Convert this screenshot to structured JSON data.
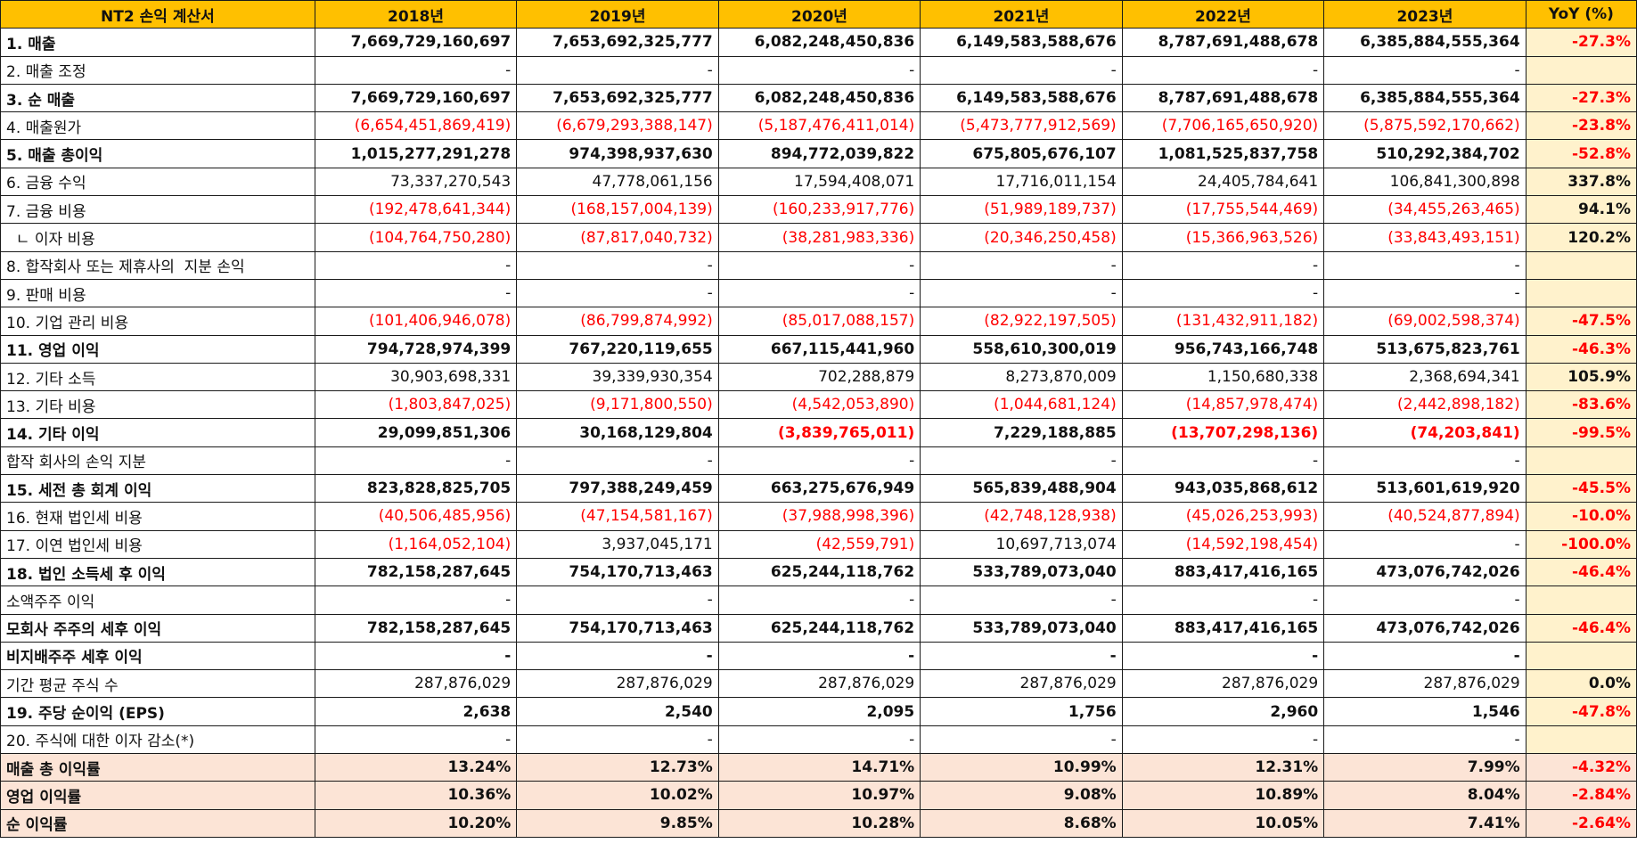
{
  "header": {
    "title": "NT2 손익 계산서",
    "years": [
      "2018년",
      "2019년",
      "2020년",
      "2021년",
      "2022년",
      "2023년"
    ],
    "yoy": "YoY (%)"
  },
  "rows": [
    {
      "label": "1. 매출",
      "bold": true,
      "values": [
        "7,669,729,160,697",
        "7,653,692,325,777",
        "6,082,248,450,836",
        "6,149,583,588,676",
        "8,787,691,488,678",
        "6,385,884,555,364"
      ],
      "yoy": "-27.3%"
    },
    {
      "label": "2. 매출 조정",
      "bold": false,
      "values": [
        "-",
        "-",
        "-",
        "-",
        "-",
        "-"
      ],
      "yoy": ""
    },
    {
      "label": "3. 순 매출",
      "bold": true,
      "values": [
        "7,669,729,160,697",
        "7,653,692,325,777",
        "6,082,248,450,836",
        "6,149,583,588,676",
        "8,787,691,488,678",
        "6,385,884,555,364"
      ],
      "yoy": "-27.3%"
    },
    {
      "label": "4. 매출원가",
      "bold": false,
      "values": [
        "(6,654,451,869,419)",
        "(6,679,293,388,147)",
        "(5,187,476,411,014)",
        "(5,473,777,912,569)",
        "(7,706,165,650,920)",
        "(5,875,592,170,662)"
      ],
      "yoy": "-23.8%"
    },
    {
      "label": "5. 매출 총이익",
      "bold": true,
      "values": [
        "1,015,277,291,278",
        "974,398,937,630",
        "894,772,039,822",
        "675,805,676,107",
        "1,081,525,837,758",
        "510,292,384,702"
      ],
      "yoy": "-52.8%"
    },
    {
      "label": "6. 금융 수익",
      "bold": false,
      "values": [
        "73,337,270,543",
        "47,778,061,156",
        "17,594,408,071",
        "17,716,011,154",
        "24,405,784,641",
        "106,841,300,898"
      ],
      "yoy": "337.8%"
    },
    {
      "label": "7. 금융 비용",
      "bold": false,
      "values": [
        "(192,478,641,344)",
        "(168,157,004,139)",
        "(160,233,917,776)",
        "(51,989,189,737)",
        "(17,755,544,469)",
        "(34,455,263,465)"
      ],
      "yoy": "94.1%"
    },
    {
      "label": "  ㄴ 이자 비용",
      "bold": false,
      "values": [
        "(104,764,750,280)",
        "(87,817,040,732)",
        "(38,281,983,336)",
        "(20,346,250,458)",
        "(15,366,963,526)",
        "(33,843,493,151)"
      ],
      "yoy": "120.2%"
    },
    {
      "label": "8. 합작회사 또는 제휴사의  지분 손익",
      "bold": false,
      "values": [
        "-",
        "-",
        "-",
        "-",
        "-",
        "-"
      ],
      "yoy": ""
    },
    {
      "label": "9. 판매 비용",
      "bold": false,
      "values": [
        "-",
        "-",
        "-",
        "-",
        "-",
        "-"
      ],
      "yoy": ""
    },
    {
      "label": "10. 기업 관리 비용",
      "bold": false,
      "values": [
        "(101,406,946,078)",
        "(86,799,874,992)",
        "(85,017,088,157)",
        "(82,922,197,505)",
        "(131,432,911,182)",
        "(69,002,598,374)"
      ],
      "yoy": "-47.5%"
    },
    {
      "label": "11. 영업 이익",
      "bold": true,
      "values": [
        "794,728,974,399",
        "767,220,119,655",
        "667,115,441,960",
        "558,610,300,019",
        "956,743,166,748",
        "513,675,823,761"
      ],
      "yoy": "-46.3%"
    },
    {
      "label": "12. 기타 소득",
      "bold": false,
      "values": [
        "30,903,698,331",
        "39,339,930,354",
        "702,288,879",
        "8,273,870,009",
        "1,150,680,338",
        "2,368,694,341"
      ],
      "yoy": "105.9%"
    },
    {
      "label": "13. 기타 비용",
      "bold": false,
      "values": [
        "(1,803,847,025)",
        "(9,171,800,550)",
        "(4,542,053,890)",
        "(1,044,681,124)",
        "(14,857,978,474)",
        "(2,442,898,182)"
      ],
      "yoy": "-83.6%"
    },
    {
      "label": "14. 기타 이익",
      "bold": true,
      "values": [
        "29,099,851,306",
        "30,168,129,804",
        "(3,839,765,011)",
        "7,229,188,885",
        "(13,707,298,136)",
        "(74,203,841)"
      ],
      "yoy": "-99.5%"
    },
    {
      "label": "합작 회사의 손익 지분",
      "bold": false,
      "values": [
        "-",
        "-",
        "-",
        "-",
        "-",
        "-"
      ],
      "yoy": ""
    },
    {
      "label": "15. 세전 총 회계 이익",
      "bold": true,
      "values": [
        "823,828,825,705",
        "797,388,249,459",
        "663,275,676,949",
        "565,839,488,904",
        "943,035,868,612",
        "513,601,619,920"
      ],
      "yoy": "-45.5%"
    },
    {
      "label": "16. 현재 법인세 비용",
      "bold": false,
      "values": [
        "(40,506,485,956)",
        "(47,154,581,167)",
        "(37,988,998,396)",
        "(42,748,128,938)",
        "(45,026,253,993)",
        "(40,524,877,894)"
      ],
      "yoy": "-10.0%"
    },
    {
      "label": "17. 이연 법인세 비용",
      "bold": false,
      "values": [
        "(1,164,052,104)",
        "3,937,045,171",
        "(42,559,791)",
        "10,697,713,074",
        "(14,592,198,454)",
        "-"
      ],
      "yoy": "-100.0%"
    },
    {
      "label": "18. 법인 소득세 후 이익",
      "bold": true,
      "values": [
        "782,158,287,645",
        "754,170,713,463",
        "625,244,118,762",
        "533,789,073,040",
        "883,417,416,165",
        "473,076,742,026"
      ],
      "yoy": "-46.4%"
    },
    {
      "label": "소액주주 이익",
      "bold": false,
      "values": [
        "-",
        "-",
        "-",
        "-",
        "-",
        "-"
      ],
      "yoy": ""
    },
    {
      "label": "모회사 주주의 세후 이익",
      "bold": true,
      "values": [
        "782,158,287,645",
        "754,170,713,463",
        "625,244,118,762",
        "533,789,073,040",
        "883,417,416,165",
        "473,076,742,026"
      ],
      "yoy": "-46.4%"
    },
    {
      "label": "비지배주주 세후 이익",
      "bold": true,
      "values": [
        "-",
        "-",
        "-",
        "-",
        "-",
        "-"
      ],
      "yoy": ""
    },
    {
      "label": "기간 평균 주식 수",
      "bold": false,
      "values": [
        "287,876,029",
        "287,876,029",
        "287,876,029",
        "287,876,029",
        "287,876,029",
        "287,876,029"
      ],
      "yoy": "0.0%"
    },
    {
      "label": "19. 주당 순이익 (EPS)",
      "bold": true,
      "values": [
        "2,638",
        "2,540",
        "2,095",
        "1,756",
        "2,960",
        "1,546"
      ],
      "yoy": "-47.8%"
    },
    {
      "label": "20. 주식에 대한 이자 감소(*)",
      "bold": false,
      "values": [
        "-",
        "-",
        "-",
        "-",
        "-",
        "-"
      ],
      "yoy": ""
    },
    {
      "label": "매출 총 이익률",
      "bold": true,
      "ratio": true,
      "values": [
        "13.24%",
        "12.73%",
        "14.71%",
        "10.99%",
        "12.31%",
        "7.99%"
      ],
      "yoy": "-4.32%"
    },
    {
      "label": "영업 이익률",
      "bold": true,
      "ratio": true,
      "values": [
        "10.36%",
        "10.02%",
        "10.97%",
        "9.08%",
        "10.89%",
        "8.04%"
      ],
      "yoy": "-2.84%"
    },
    {
      "label": "순 이익률",
      "bold": true,
      "ratio": true,
      "values": [
        "10.20%",
        "9.85%",
        "10.28%",
        "8.68%",
        "10.05%",
        "7.41%"
      ],
      "yoy": "-2.64%"
    }
  ],
  "colors": {
    "header": "#ffc000",
    "yoy_cell": "#fff2cc",
    "ratio_row": "#fce4d6",
    "negative": "#ff0000"
  }
}
